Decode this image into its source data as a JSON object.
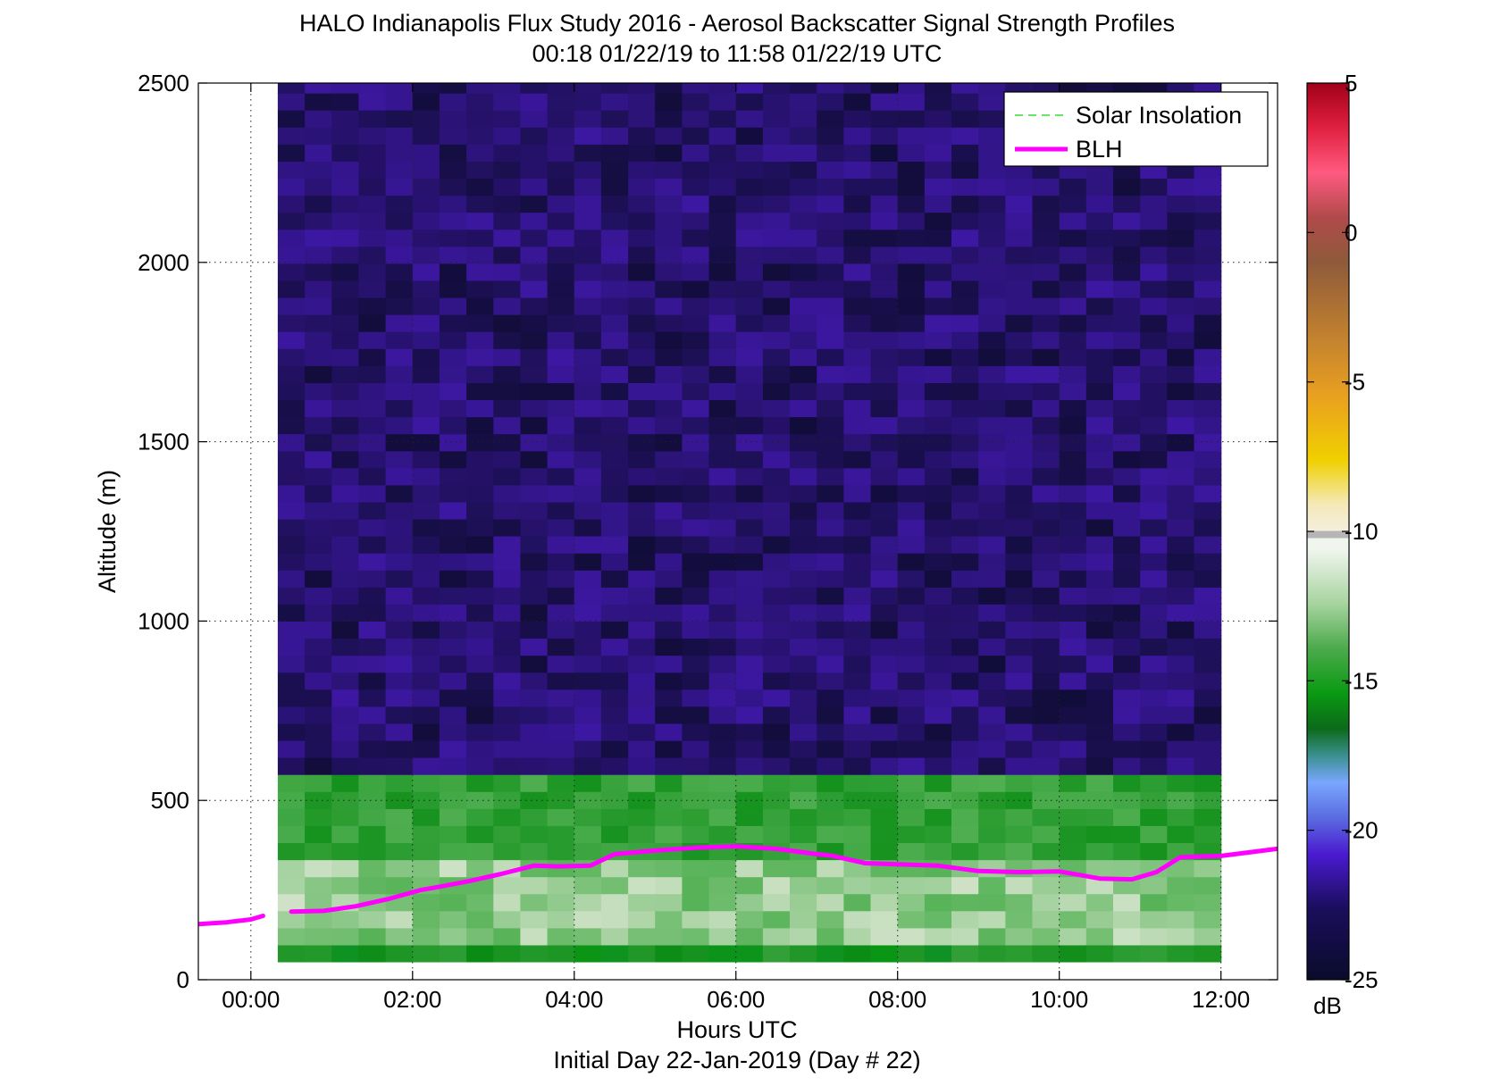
{
  "chart_data": {
    "type": "heatmap",
    "title": "HALO Indianapolis Flux Study 2016 - Aerosol Backscatter Signal Strength Profiles",
    "subtitle": "00:18 01/22/19 to 11:58 01/22/19  UTC",
    "xlabel": "Hours UTC",
    "xlabel2": "Initial Day 22-Jan-2019 (Day # 22)",
    "ylabel": "Altitude (m)",
    "xlim": [
      -0.65,
      12.7
    ],
    "ylim": [
      0,
      2500
    ],
    "x_ticks": [
      0,
      2,
      4,
      6,
      8,
      10,
      12
    ],
    "x_tick_labels": [
      "00:00",
      "02:00",
      "04:00",
      "06:00",
      "08:00",
      "10:00",
      "12:00"
    ],
    "y_ticks": [
      0,
      500,
      1000,
      1500,
      2000,
      2500
    ],
    "y_tick_labels": [
      "0",
      "500",
      "1000",
      "1500",
      "2000",
      "2500"
    ],
    "grid": "dotted",
    "legend_position": "top-right",
    "colorbar": {
      "unit": "dB",
      "range": [
        -25,
        5
      ],
      "ticks": [
        5,
        0,
        -5,
        -10,
        -15,
        -20,
        -25
      ],
      "tick_labels": [
        "5",
        "0",
        "-5",
        "-10",
        "-15",
        "-20",
        "-25"
      ]
    },
    "heatmap": {
      "x_start": 0.333,
      "x_end": 12.0,
      "y_start": 50,
      "y_end": 2500,
      "columns": 35,
      "row_height": 47.5,
      "layers": [
        {
          "altitude_range": [
            50,
            100
          ],
          "value_db": -15.5
        },
        {
          "altitude_range": [
            100,
            330
          ],
          "value_db": -12.0
        },
        {
          "altitude_range": [
            330,
            550
          ],
          "value_db": -14.5
        },
        {
          "altitude_range": [
            550,
            2500
          ],
          "value_db": -23.5
        }
      ]
    },
    "series": [
      {
        "name": "Solar Insolation",
        "style": "dashed",
        "color": "#33dd33",
        "x": [],
        "y": []
      },
      {
        "name": "BLH",
        "style": "solid",
        "color": "#ff00ff",
        "segments": [
          {
            "x": [
              -0.65,
              -0.3,
              0.0,
              0.15
            ],
            "y": [
              155,
              160,
              168,
              178
            ]
          },
          {
            "x": [
              0.5,
              0.9,
              1.3,
              1.7,
              2.1,
              2.3,
              2.7,
              3.1,
              3.5,
              3.8,
              4.2,
              4.5,
              5.0,
              5.5,
              6.0,
              6.5,
              7.0,
              7.2,
              7.6,
              8.0,
              8.5,
              9.0,
              9.5,
              10.0,
              10.5,
              10.9,
              11.2,
              11.5,
              12.0,
              12.7
            ],
            "y": [
              190,
              192,
              205,
              225,
              250,
              258,
              275,
              295,
              318,
              316,
              318,
              350,
              360,
              368,
              372,
              365,
              350,
              345,
              325,
              322,
              318,
              303,
              300,
              302,
              282,
              280,
              300,
              342,
              345,
              365
            ]
          }
        ]
      }
    ]
  }
}
